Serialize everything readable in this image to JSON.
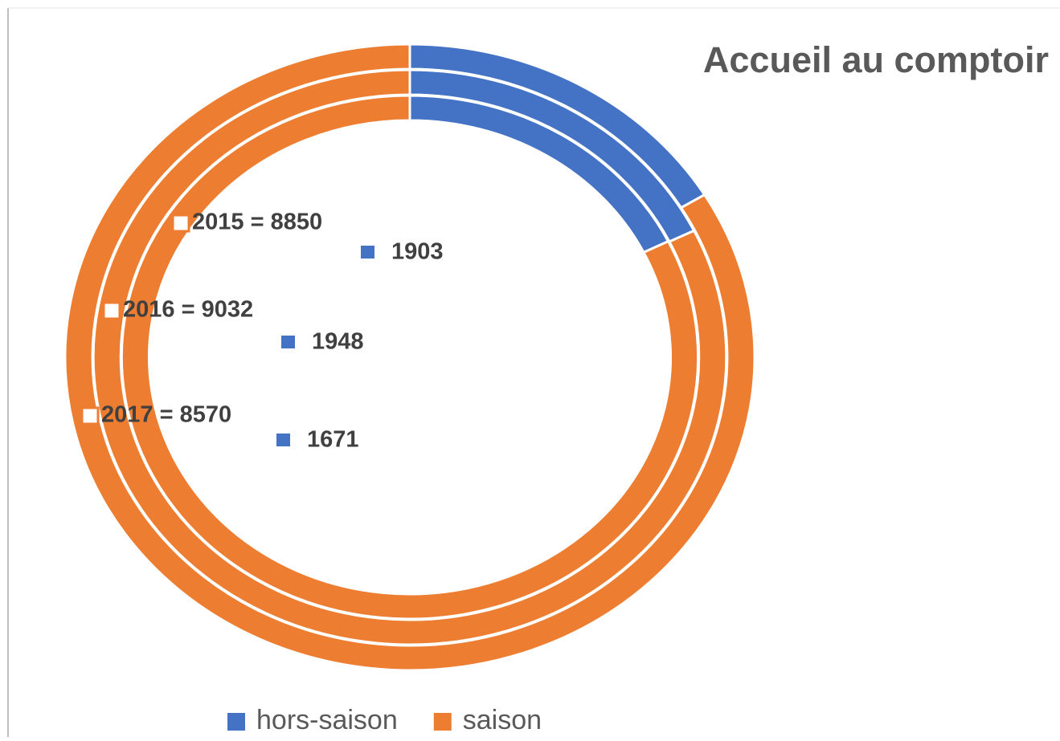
{
  "chart_data": {
    "type": "donut",
    "title": "Accueil au comptoir",
    "categories": [
      "hors-saison",
      "saison"
    ],
    "colors": [
      "#4472c4",
      "#ed7d31"
    ],
    "series": [
      {
        "name": "2015",
        "values": [
          1903,
          8850
        ],
        "value_labels": [
          "1903",
          "2015 = 8850"
        ]
      },
      {
        "name": "2016",
        "values": [
          1948,
          9032
        ],
        "value_labels": [
          "1948",
          "2016 = 9032"
        ]
      },
      {
        "name": "2017",
        "values": [
          1671,
          8570
        ],
        "value_labels": [
          "1671",
          "2017 = 8570"
        ]
      }
    ],
    "legend": "bottom"
  }
}
